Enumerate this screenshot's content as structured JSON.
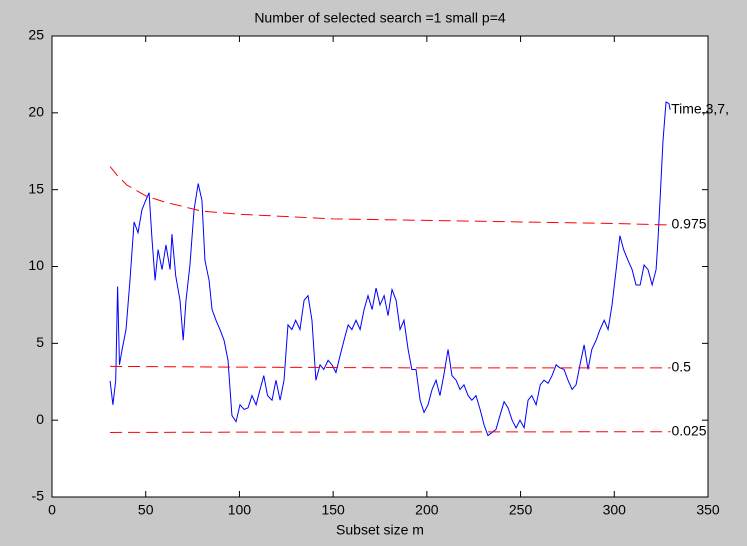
{
  "chart_data": {
    "type": "line",
    "title": "Number of selected search =1  small p=4",
    "xlabel": "Subset size m",
    "xlim": [
      0,
      350
    ],
    "ylim": [
      -5,
      25
    ],
    "xticks": [
      0,
      50,
      100,
      150,
      200,
      250,
      300,
      350
    ],
    "yticks": [
      -5,
      0,
      5,
      10,
      15,
      20,
      25
    ],
    "grid": false,
    "series": [
      {
        "name": "Time,3,7,",
        "color": "#0000ff",
        "dashed": false,
        "x": [
          31,
          32.5,
          34,
          35,
          36,
          37.4,
          39.5,
          41.6,
          43.8,
          45.9,
          48,
          50,
          51.8,
          53.4,
          55,
          56.6,
          58.7,
          60.8,
          63,
          64,
          66,
          68.3,
          70,
          71.5,
          73.6,
          75.8,
          78,
          80,
          81.6,
          83.8,
          85.4,
          87.5,
          89.6,
          91.8,
          93.9,
          96,
          98.2,
          100.3,
          102.5,
          104.6,
          106.7,
          108.9,
          111,
          113,
          115,
          117.4,
          119.5,
          121.7,
          123.8,
          125.9,
          128,
          130,
          132.3,
          134.5,
          136.6,
          138.7,
          140.8,
          143,
          145,
          147.3,
          149.4,
          151.5,
          153.7,
          155.8,
          158,
          160,
          162.2,
          164.4,
          166.5,
          168.6,
          170.8,
          172.9,
          175,
          177.2,
          179.3,
          181.4,
          183.6,
          185.7,
          187.8,
          190,
          192,
          194.2,
          196.4,
          198.5,
          200.6,
          202.8,
          204.9,
          207,
          209,
          211.3,
          213.4,
          215.6,
          217.7,
          219.8,
          222,
          224,
          226.2,
          228.4,
          230.5,
          232.6,
          234.8,
          236.9,
          239,
          241.2,
          243.3,
          245.5,
          247.6,
          249.7,
          251.9,
          254,
          256,
          258.3,
          260.5,
          262.5,
          264.7,
          266.8,
          269,
          271,
          273.2,
          275.3,
          277.5,
          279.6,
          281.7,
          283.9,
          286,
          288,
          290.3,
          292.4,
          294.6,
          296.7,
          298.8,
          301,
          303,
          305,
          307.3,
          309.5,
          311.6,
          313.8,
          315.9,
          318,
          320.2,
          322.3,
          323.3,
          324.4,
          326,
          327.6,
          329.2,
          329.8
        ],
        "values": [
          2.55,
          1.0,
          2.6,
          8.7,
          3.6,
          4.6,
          5.9,
          9.1,
          12.9,
          12.2,
          13.7,
          14.3,
          14.8,
          11.7,
          9.1,
          11.1,
          9.8,
          11.4,
          9.8,
          12.1,
          9.4,
          7.8,
          5.2,
          7.8,
          10.1,
          13.7,
          15.4,
          14.3,
          10.4,
          9.1,
          7.2,
          6.5,
          5.9,
          5.2,
          3.9,
          0.3,
          -0.1,
          1.0,
          0.7,
          0.8,
          1.6,
          1.0,
          2.0,
          2.9,
          1.6,
          1.3,
          2.6,
          1.3,
          2.6,
          6.2,
          5.9,
          6.5,
          5.9,
          7.8,
          8.1,
          6.5,
          2.6,
          3.6,
          3.3,
          3.9,
          3.6,
          3.1,
          4.2,
          5.2,
          6.2,
          5.9,
          6.5,
          5.9,
          7.2,
          8.1,
          7.2,
          8.6,
          7.5,
          8.1,
          6.8,
          8.5,
          7.8,
          5.9,
          6.5,
          4.6,
          3.3,
          3.3,
          1.3,
          0.5,
          1.0,
          2.0,
          2.6,
          1.6,
          2.9,
          4.6,
          2.9,
          2.6,
          2.0,
          2.3,
          1.6,
          1.3,
          1.6,
          0.7,
          -0.3,
          -1.0,
          -0.8,
          -0.6,
          0.3,
          1.2,
          0.8,
          0,
          -0.5,
          0,
          -0.5,
          1.3,
          1.6,
          1.0,
          2.3,
          2.6,
          2.4,
          2.9,
          3.6,
          3.4,
          3.3,
          2.6,
          2.0,
          2.3,
          3.6,
          4.9,
          3.3,
          4.6,
          5.2,
          5.9,
          6.5,
          5.9,
          7.5,
          9.8,
          12.0,
          11.1,
          10.4,
          9.8,
          8.8,
          8.8,
          10.1,
          9.8,
          8.8,
          9.8,
          11.7,
          14.3,
          18.2,
          20.7,
          20.6,
          20.2
        ]
      },
      {
        "name": "0.975",
        "color": "#ff0000",
        "dashed": true,
        "x": [
          31,
          35,
          40,
          50,
          60,
          80,
          100,
          150,
          200,
          250,
          300,
          330
        ],
        "values": [
          16.5,
          15.9,
          15.3,
          14.6,
          14.2,
          13.6,
          13.4,
          13.1,
          13.0,
          12.9,
          12.8,
          12.7
        ]
      },
      {
        "name": "0.5",
        "color": "#ff0000",
        "dashed": true,
        "x": [
          31,
          100,
          200,
          330
        ],
        "values": [
          3.5,
          3.45,
          3.4,
          3.4
        ]
      },
      {
        "name": "0.025",
        "color": "#ff0000",
        "dashed": true,
        "x": [
          31,
          100,
          200,
          330
        ],
        "values": [
          -0.8,
          -0.78,
          -0.77,
          -0.75
        ]
      }
    ]
  }
}
